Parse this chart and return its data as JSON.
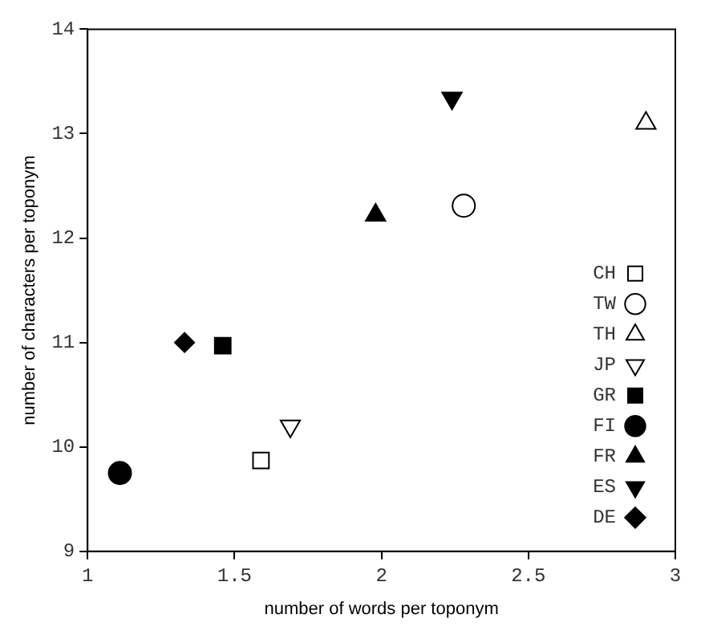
{
  "chart_data": {
    "type": "scatter",
    "xlabel": "number of words per toponym",
    "ylabel": "number of characters per toponym",
    "xlim": [
      1,
      3
    ],
    "xticks": [
      1,
      1.5,
      2,
      2.5,
      3
    ],
    "ylim": [
      9,
      14
    ],
    "yticks": [
      9,
      10,
      11,
      12,
      13,
      14
    ],
    "grid": false,
    "legend": "bottom right",
    "series": [
      {
        "name": "CH",
        "color": "#000000",
        "marker": "square-open",
        "x": [
          1.59
        ],
        "values": [
          9.87
        ]
      },
      {
        "name": "TW",
        "color": "#000000",
        "marker": "circle-open",
        "x": [
          2.28
        ],
        "values": [
          12.31
        ]
      },
      {
        "name": "TH",
        "color": "#000000",
        "marker": "triangle-open",
        "x": [
          2.9
        ],
        "values": [
          13.1
        ]
      },
      {
        "name": "JP",
        "color": "#000000",
        "marker": "triangle-down-open",
        "x": [
          1.69
        ],
        "values": [
          10.2
        ]
      },
      {
        "name": "GR",
        "color": "#000000",
        "marker": "square",
        "x": [
          1.46
        ],
        "values": [
          10.97
        ]
      },
      {
        "name": "FI",
        "color": "#000000",
        "marker": "circle",
        "x": [
          1.11
        ],
        "values": [
          9.75
        ]
      },
      {
        "name": "FR",
        "color": "#000000",
        "marker": "triangle",
        "x": [
          1.98
        ],
        "values": [
          12.22
        ]
      },
      {
        "name": "ES",
        "color": "#000000",
        "marker": "triangle-down",
        "x": [
          2.24
        ],
        "values": [
          13.34
        ]
      },
      {
        "name": "DE",
        "color": "#000000",
        "marker": "diamond",
        "x": [
          1.33
        ],
        "values": [
          11.0
        ]
      }
    ]
  }
}
